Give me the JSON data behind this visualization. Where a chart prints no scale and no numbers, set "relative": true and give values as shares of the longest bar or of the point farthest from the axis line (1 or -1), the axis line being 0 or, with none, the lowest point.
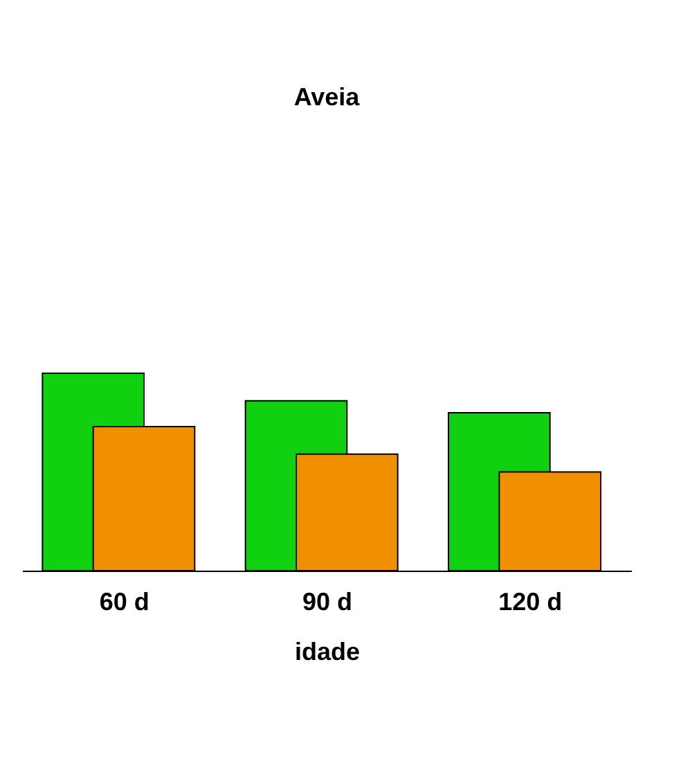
{
  "chart_data": {
    "type": "bar",
    "title": "Aveia",
    "xlabel": "idade",
    "categories": [
      "60 d",
      "90 d",
      "120 d"
    ],
    "relative": true,
    "series": [
      {
        "color": "#10d010",
        "values": [
          1,
          0.86,
          0.8
        ]
      },
      {
        "color": "#f09000",
        "values": [
          0.73,
          0.59,
          0.5
        ]
      }
    ]
  }
}
